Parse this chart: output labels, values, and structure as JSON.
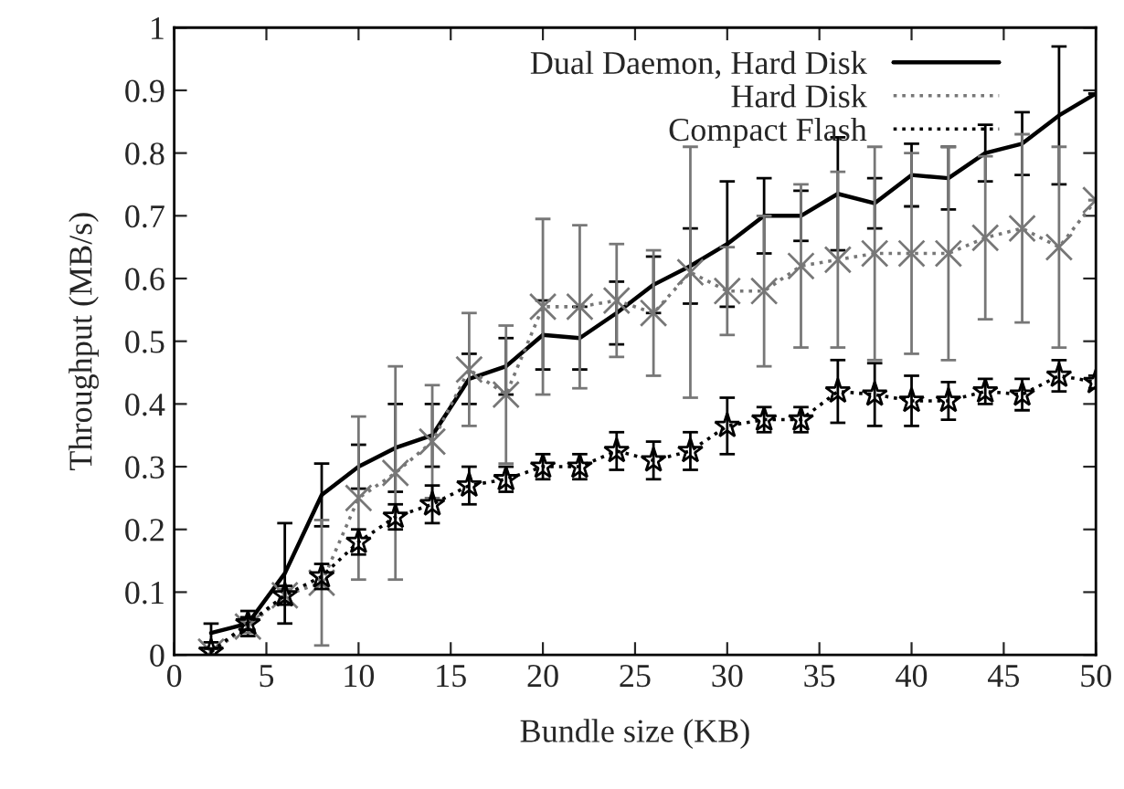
{
  "chart_data": {
    "type": "line",
    "xlabel": "Bundle size (KB)",
    "ylabel": "Throughput (MB/s)",
    "x": [
      2,
      4,
      6,
      8,
      10,
      12,
      14,
      16,
      18,
      20,
      22,
      24,
      26,
      28,
      30,
      32,
      34,
      36,
      38,
      40,
      42,
      44,
      46,
      48,
      50
    ],
    "xlim": [
      0,
      50
    ],
    "xticks": [
      0,
      5,
      10,
      15,
      20,
      25,
      30,
      35,
      40,
      45,
      50
    ],
    "ylim": [
      0,
      1
    ],
    "yticks": [
      0,
      0.1,
      0.2,
      0.3,
      0.4,
      0.5,
      0.6,
      0.7,
      0.8,
      0.9,
      1
    ],
    "legend": "top right",
    "grid": false,
    "series": [
      {
        "name": "Dual Daemon, Hard Disk",
        "color": "#000000",
        "line_style": "solid",
        "marker": "none",
        "values": [
          0.035,
          0.05,
          0.13,
          0.255,
          0.3,
          0.33,
          0.35,
          0.44,
          0.46,
          0.51,
          0.505,
          0.545,
          0.59,
          0.62,
          0.655,
          0.7,
          0.7,
          0.735,
          0.72,
          0.765,
          0.76,
          0.8,
          0.815,
          0.86,
          0.895
        ],
        "errors": [
          0.015,
          0.02,
          0.08,
          0.05,
          0.035,
          0.07,
          0.05,
          0.04,
          0.045,
          0.055,
          0.05,
          0.05,
          0.045,
          0.06,
          0.1,
          0.06,
          0.04,
          0.09,
          0.04,
          0.05,
          0.05,
          0.045,
          0.05,
          0.11,
          0.0
        ]
      },
      {
        "name": "Hard Disk",
        "color": "#777777",
        "line_style": "dotted",
        "marker": "cross",
        "values": [
          0.005,
          0.045,
          0.095,
          0.115,
          0.25,
          0.29,
          0.34,
          0.455,
          0.415,
          0.555,
          0.555,
          0.565,
          0.545,
          0.61,
          0.58,
          0.58,
          0.62,
          0.63,
          0.64,
          0.64,
          0.64,
          0.665,
          0.68,
          0.65,
          0.725
        ],
        "errors": [
          0.005,
          0.01,
          0.01,
          0.1,
          0.13,
          0.17,
          0.09,
          0.09,
          0.11,
          0.14,
          0.13,
          0.09,
          0.1,
          0.2,
          0.07,
          0.12,
          0.13,
          0.14,
          0.17,
          0.16,
          0.17,
          0.13,
          0.15,
          0.16,
          0.0
        ]
      },
      {
        "name": "Compact Flash",
        "color": "#000000",
        "line_style": "dotted",
        "marker": "star",
        "values": [
          0.005,
          0.05,
          0.095,
          0.125,
          0.18,
          0.22,
          0.24,
          0.27,
          0.28,
          0.3,
          0.3,
          0.325,
          0.31,
          0.325,
          0.365,
          0.375,
          0.375,
          0.42,
          0.415,
          0.405,
          0.405,
          0.42,
          0.415,
          0.445,
          0.435
        ],
        "errors": [
          0.005,
          0.01,
          0.015,
          0.02,
          0.02,
          0.02,
          0.03,
          0.03,
          0.02,
          0.02,
          0.02,
          0.03,
          0.03,
          0.03,
          0.045,
          0.02,
          0.02,
          0.05,
          0.05,
          0.04,
          0.03,
          0.02,
          0.025,
          0.025,
          0.01
        ]
      }
    ]
  }
}
